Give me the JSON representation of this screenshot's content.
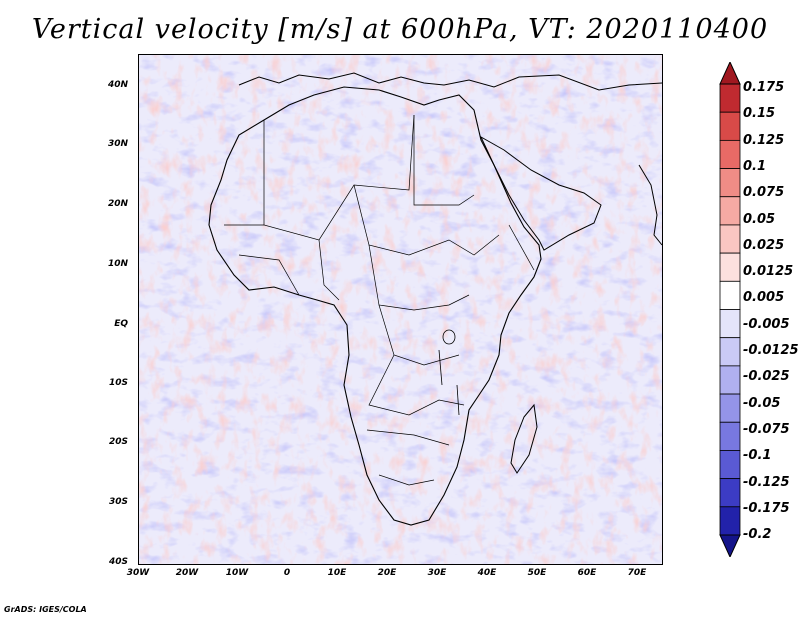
{
  "title": "Vertical velocity [m/s] at 600hPa, VT: 2020110400",
  "credit": "GrADS: IGES/COLA",
  "map": {
    "lat_labels": [
      "40N",
      "30N",
      "20N",
      "10N",
      "EQ",
      "10S",
      "20S",
      "30S",
      "40S"
    ],
    "lon_labels": [
      "30W",
      "20W",
      "10W",
      "0",
      "10E",
      "20E",
      "30E",
      "40E",
      "50E",
      "60E",
      "70E"
    ],
    "lat_range": [
      -40,
      45
    ],
    "lon_range": [
      -30,
      75
    ]
  },
  "colorbar": {
    "labels": [
      "0.175",
      "0.15",
      "0.125",
      "0.1",
      "0.075",
      "0.05",
      "0.025",
      "0.0125",
      "0.005",
      "-0.005",
      "-0.0125",
      "-0.025",
      "-0.05",
      "-0.075",
      "-0.1",
      "-0.125",
      "-0.175",
      "-0.2"
    ],
    "colors": [
      "#a01820",
      "#c02a30",
      "#d84a48",
      "#e86a66",
      "#f08c86",
      "#f6aaa4",
      "#fac6c2",
      "#fde0de",
      "#ffffff",
      "#e4e4fa",
      "#cacaf6",
      "#b0b0f0",
      "#9494e8",
      "#7878e0",
      "#5a5ad4",
      "#3c3cc4",
      "#2222aa",
      "#14148a"
    ]
  },
  "colors": {
    "background": "#ffffff",
    "coast": "#000000"
  }
}
